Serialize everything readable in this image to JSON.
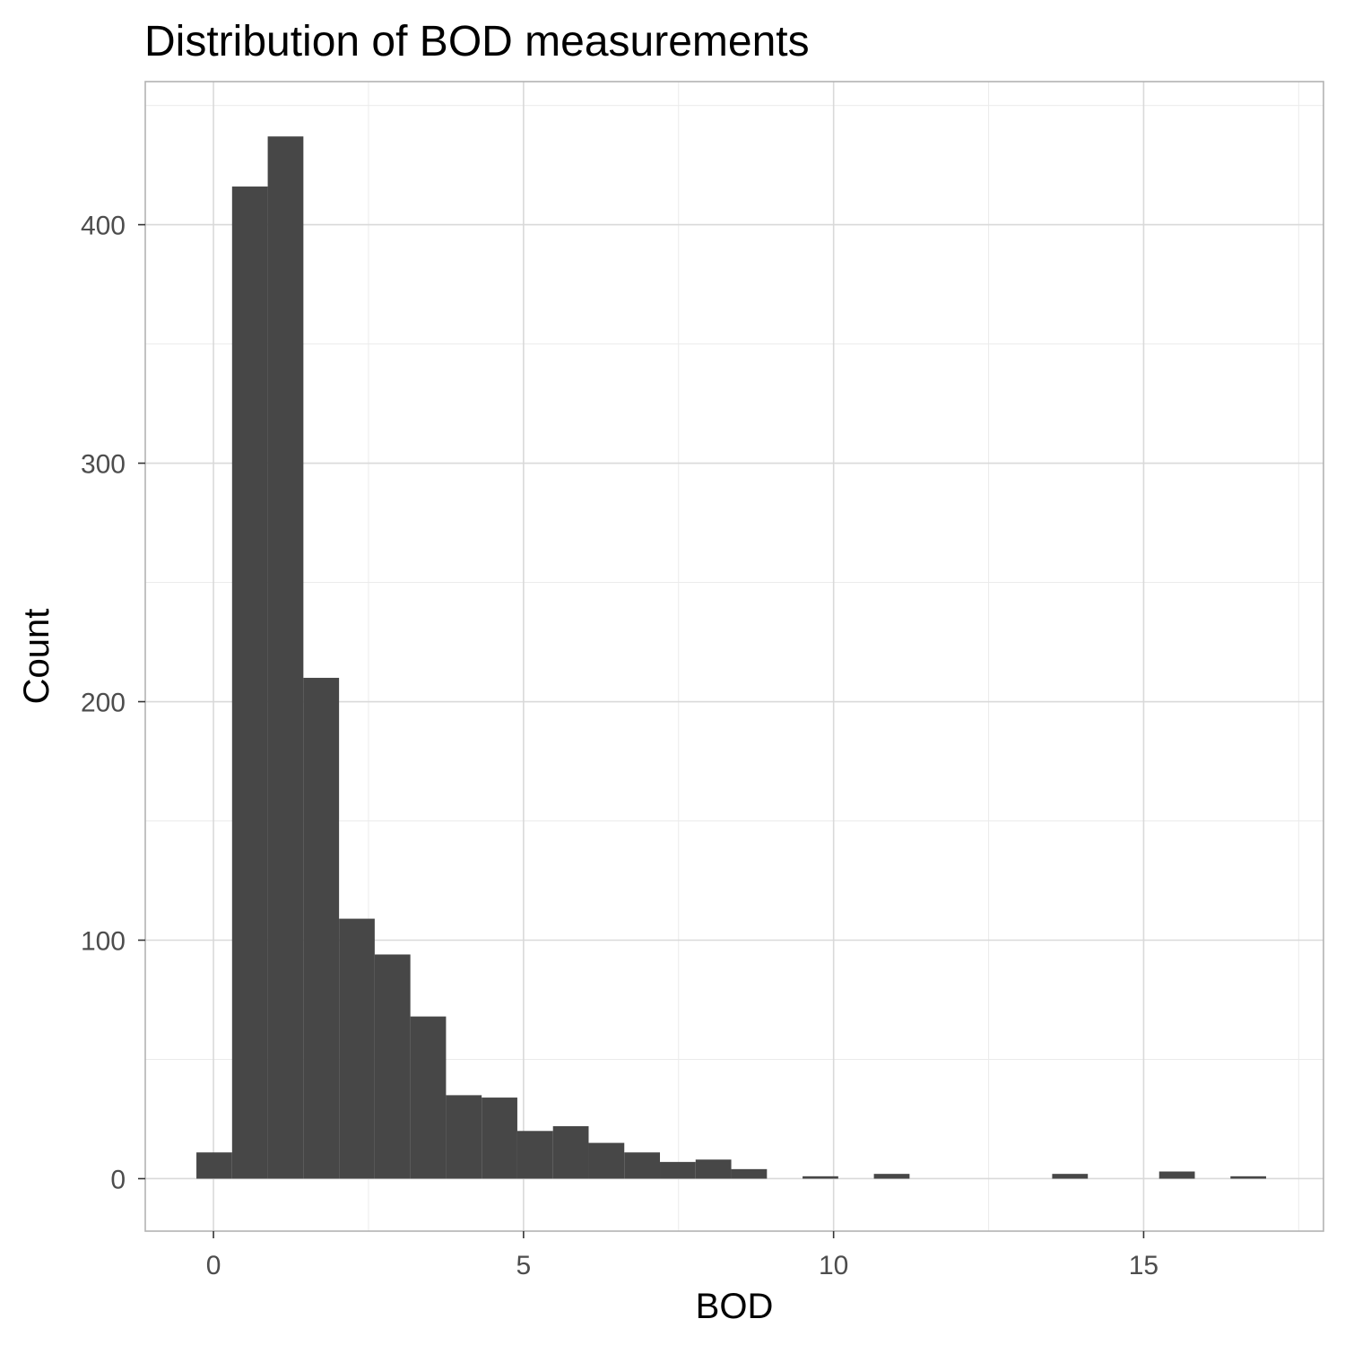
{
  "chart_data": {
    "type": "bar",
    "title": "Distribution of BOD measurements",
    "xlabel": "BOD",
    "ylabel": "Count",
    "xlim": [
      -1.1,
      17.9
    ],
    "ylim": [
      -22,
      460
    ],
    "x_ticks": [
      0,
      5,
      10,
      15
    ],
    "x_minor_ticks": [
      2.5,
      7.5,
      12.5,
      17.5
    ],
    "y_ticks": [
      0,
      100,
      200,
      300,
      400
    ],
    "y_minor_ticks": [
      50,
      150,
      250,
      350,
      450
    ],
    "bin_width": 0.575,
    "bins": [
      {
        "x0": -0.275,
        "x1": 0.3,
        "count": 11
      },
      {
        "x0": 0.3,
        "x1": 0.875,
        "count": 416
      },
      {
        "x0": 0.875,
        "x1": 1.45,
        "count": 437
      },
      {
        "x0": 1.45,
        "x1": 2.025,
        "count": 210
      },
      {
        "x0": 2.025,
        "x1": 2.6,
        "count": 109
      },
      {
        "x0": 2.6,
        "x1": 3.175,
        "count": 94
      },
      {
        "x0": 3.175,
        "x1": 3.75,
        "count": 68
      },
      {
        "x0": 3.75,
        "x1": 4.325,
        "count": 35
      },
      {
        "x0": 4.325,
        "x1": 4.9,
        "count": 34
      },
      {
        "x0": 4.9,
        "x1": 5.475,
        "count": 20
      },
      {
        "x0": 5.475,
        "x1": 6.05,
        "count": 22
      },
      {
        "x0": 6.05,
        "x1": 6.625,
        "count": 15
      },
      {
        "x0": 6.625,
        "x1": 7.2,
        "count": 11
      },
      {
        "x0": 7.2,
        "x1": 7.775,
        "count": 7
      },
      {
        "x0": 7.775,
        "x1": 8.35,
        "count": 8
      },
      {
        "x0": 8.35,
        "x1": 8.925,
        "count": 4
      },
      {
        "x0": 8.925,
        "x1": 9.5,
        "count": 0
      },
      {
        "x0": 9.5,
        "x1": 10.075,
        "count": 1
      },
      {
        "x0": 10.075,
        "x1": 10.65,
        "count": 0
      },
      {
        "x0": 10.65,
        "x1": 11.225,
        "count": 2
      },
      {
        "x0": 11.225,
        "x1": 11.8,
        "count": 0
      },
      {
        "x0": 11.8,
        "x1": 12.375,
        "count": 0
      },
      {
        "x0": 12.375,
        "x1": 12.95,
        "count": 0
      },
      {
        "x0": 12.95,
        "x1": 13.525,
        "count": 0
      },
      {
        "x0": 13.525,
        "x1": 14.1,
        "count": 2
      },
      {
        "x0": 14.1,
        "x1": 14.675,
        "count": 0
      },
      {
        "x0": 14.675,
        "x1": 15.25,
        "count": 0
      },
      {
        "x0": 15.25,
        "x1": 15.825,
        "count": 3
      },
      {
        "x0": 15.825,
        "x1": 16.4,
        "count": 0
      },
      {
        "x0": 16.4,
        "x1": 16.975,
        "count": 1
      }
    ],
    "grid": true,
    "colors": {
      "bar": "#474747",
      "grid_major": "#d9d9d9",
      "grid_minor": "#ebebeb",
      "panel_border": "#b3b3b3",
      "tick_label": "#4d4d4d"
    }
  }
}
